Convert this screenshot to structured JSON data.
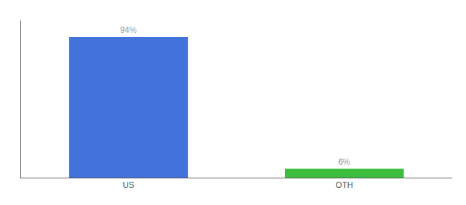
{
  "chart_data": {
    "type": "bar",
    "categories": [
      "US",
      "OTH"
    ],
    "values": [
      94,
      6
    ],
    "value_labels": [
      "94%",
      "6%"
    ],
    "data_labels": true,
    "colors": [
      "#4472db",
      "#3dbd3d"
    ],
    "ylim": [
      0,
      105
    ],
    "grid": false,
    "tick_labels": "x"
  }
}
